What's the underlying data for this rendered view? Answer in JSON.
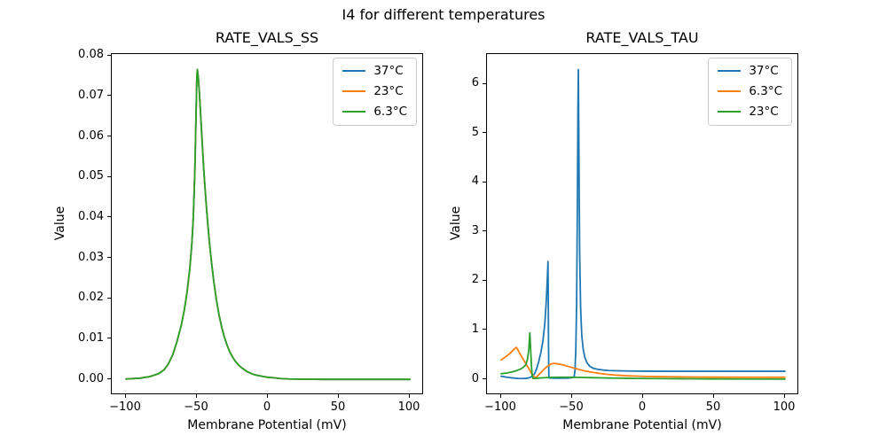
{
  "figure": {
    "suptitle": "I4 for different temperatures",
    "background": "#ffffff",
    "text_color": "#000000"
  },
  "colors": {
    "blue": "#1f77b4",
    "orange": "#ff7f0e",
    "green": "#2ca02c"
  },
  "chart_data": [
    {
      "type": "line",
      "title": "RATE_VALS_SS",
      "xlabel": "Membrane Potential (mV)",
      "ylabel": "Value",
      "xlim": [
        -110,
        110
      ],
      "ylim": [
        -0.0038,
        0.0805
      ],
      "grid": false,
      "xticks": {
        "values": [
          -100,
          -50,
          0,
          50,
          100
        ],
        "labels": [
          "−100",
          "−50",
          "0",
          "50",
          "100"
        ]
      },
      "yticks": {
        "values": [
          0,
          0.01,
          0.02,
          0.03,
          0.04,
          0.05,
          0.06,
          0.07,
          0.08
        ],
        "labels": [
          "0.00",
          "0.01",
          "0.02",
          "0.03",
          "0.04",
          "0.05",
          "0.06",
          "0.07",
          "0.08"
        ]
      },
      "legend": {
        "position": "upper right",
        "entries": [
          {
            "label": "37°C",
            "color": "#1f77b4"
          },
          {
            "label": "23°C",
            "color": "#ff7f0e"
          },
          {
            "label": "6.3°C",
            "color": "#2ca02c"
          }
        ]
      },
      "note": "All three temperature curves overlap exactly; bell curve peaks at ≈0.0767 near −50 mV.",
      "series": [
        {
          "name": "37°C",
          "color": "#1f77b4",
          "points": [
            [
              -100,
              0.0002
            ],
            [
              -90,
              0.0004
            ],
            [
              -83,
              0.0008
            ],
            [
              -77,
              0.0015
            ],
            [
              -73,
              0.0025
            ],
            [
              -70,
              0.004
            ],
            [
              -67,
              0.0062
            ],
            [
              -64,
              0.0095
            ],
            [
              -61,
              0.0135
            ],
            [
              -59,
              0.017
            ],
            [
              -57,
              0.0215
            ],
            [
              -55,
              0.0275
            ],
            [
              -53.5,
              0.034
            ],
            [
              -52.5,
              0.0405
            ],
            [
              -51.5,
              0.051
            ],
            [
              -50.7,
              0.064
            ],
            [
              -50.1,
              0.074
            ],
            [
              -49.7,
              0.0767
            ],
            [
              -49.1,
              0.075
            ],
            [
              -48.3,
              0.0712
            ],
            [
              -47.3,
              0.065
            ],
            [
              -46.3,
              0.0588
            ],
            [
              -45.2,
              0.052
            ],
            [
              -44,
              0.046
            ],
            [
              -42.6,
              0.0396
            ],
            [
              -41.2,
              0.034
            ],
            [
              -39.6,
              0.0287
            ],
            [
              -38,
              0.024
            ],
            [
              -36.2,
              0.0196
            ],
            [
              -34.4,
              0.016
            ],
            [
              -32.6,
              0.0131
            ],
            [
              -30.8,
              0.0107
            ],
            [
              -29,
              0.0088
            ],
            [
              -27,
              0.007
            ],
            [
              -25,
              0.0057
            ],
            [
              -23,
              0.0046
            ],
            [
              -21,
              0.0038
            ],
            [
              -19,
              0.0031
            ],
            [
              -17,
              0.0026
            ],
            [
              -14.5,
              0.002
            ],
            [
              -12,
              0.0016
            ],
            [
              -9,
              0.0012
            ],
            [
              -6,
              0.001
            ],
            [
              -3,
              0.0008
            ],
            [
              0,
              0.0006
            ],
            [
              4,
              0.0005
            ],
            [
              9,
              0.0003
            ],
            [
              15,
              0.0002
            ],
            [
              25,
              0.00015
            ],
            [
              40,
              0.0001
            ],
            [
              60,
              0.0001
            ],
            [
              100,
              0.0001
            ]
          ]
        },
        {
          "name": "23°C",
          "color": "#ff7f0e",
          "points_same_as": "37°C"
        },
        {
          "name": "6.3°C",
          "color": "#2ca02c",
          "points_same_as": "37°C"
        }
      ]
    },
    {
      "type": "line",
      "title": "RATE_VALS_TAU",
      "xlabel": "Membrane Potential (mV)",
      "ylabel": "Value",
      "xlim": [
        -110,
        110
      ],
      "ylim": [
        -0.315,
        6.615
      ],
      "grid": false,
      "xticks": {
        "values": [
          -100,
          -50,
          0,
          50,
          100
        ],
        "labels": [
          "−100",
          "−50",
          "0",
          "50",
          "100"
        ]
      },
      "yticks": {
        "values": [
          0,
          1,
          2,
          3,
          4,
          5,
          6
        ],
        "labels": [
          "0",
          "1",
          "2",
          "3",
          "4",
          "5",
          "6"
        ]
      },
      "legend": {
        "position": "upper right",
        "entries": [
          {
            "label": "37°C",
            "color": "#1f77b4"
          },
          {
            "label": "6.3°C",
            "color": "#ff7f0e"
          },
          {
            "label": "23°C",
            "color": "#2ca02c"
          }
        ]
      },
      "note": "37°C curve has sharp spikes ≈2.4 at −67 mV and ≈6.3 at −46 mV; 6.3°C peaks ≈0.65 at −89 mV with broad bump ≈0.33 near −63 mV; 23°C spikes ≈0.95 at −80 mV.",
      "series": [
        {
          "name": "37°C",
          "color": "#1f77b4",
          "points": [
            [
              -100,
              0.07
            ],
            [
              -96,
              0.05
            ],
            [
              -92,
              0.035
            ],
            [
              -88,
              0.025
            ],
            [
              -85,
              0.022
            ],
            [
              -82,
              0.028
            ],
            [
              -80,
              0.04
            ],
            [
              -78,
              0.07
            ],
            [
              -76.5,
              0.12
            ],
            [
              -75,
              0.22
            ],
            [
              -73.5,
              0.37
            ],
            [
              -72,
              0.55
            ],
            [
              -70.5,
              0.8
            ],
            [
              -69.2,
              1.15
            ],
            [
              -68.2,
              1.6
            ],
            [
              -67.4,
              2.1
            ],
            [
              -67,
              2.4
            ],
            [
              -66.8,
              1.6
            ],
            [
              -66.6,
              0.6
            ],
            [
              -66.4,
              0.1
            ],
            [
              -66.2,
              0.035
            ],
            [
              -63,
              0.03
            ],
            [
              -58,
              0.03
            ],
            [
              -53,
              0.032
            ],
            [
              -50,
              0.04
            ],
            [
              -48.6,
              0.06
            ],
            [
              -48,
              0.18
            ],
            [
              -47.4,
              0.6
            ],
            [
              -46.8,
              1.6
            ],
            [
              -46.3,
              3.5
            ],
            [
              -45.9,
              5.5
            ],
            [
              -45.6,
              6.3
            ],
            [
              -45.2,
              4.6
            ],
            [
              -44.7,
              2.6
            ],
            [
              -44,
              1.45
            ],
            [
              -43.2,
              0.9
            ],
            [
              -42.2,
              0.62
            ],
            [
              -41,
              0.45
            ],
            [
              -39.5,
              0.34
            ],
            [
              -37.5,
              0.27
            ],
            [
              -35,
              0.23
            ],
            [
              -32,
              0.21
            ],
            [
              -28,
              0.195
            ],
            [
              -24,
              0.185
            ],
            [
              -18,
              0.18
            ],
            [
              -10,
              0.175
            ],
            [
              0,
              0.172
            ],
            [
              15,
              0.17
            ],
            [
              35,
              0.17
            ],
            [
              60,
              0.17
            ],
            [
              100,
              0.17
            ]
          ]
        },
        {
          "name": "6.3°C",
          "color": "#ff7f0e",
          "points": [
            [
              -100,
              0.4
            ],
            [
              -97,
              0.46
            ],
            [
              -94,
              0.53
            ],
            [
              -91.5,
              0.6
            ],
            [
              -90,
              0.64
            ],
            [
              -89.3,
              0.655
            ],
            [
              -88.3,
              0.61
            ],
            [
              -87,
              0.54
            ],
            [
              -85,
              0.44
            ],
            [
              -83,
              0.34
            ],
            [
              -81,
              0.25
            ],
            [
              -79.5,
              0.17
            ],
            [
              -78,
              0.1
            ],
            [
              -77,
              0.06
            ],
            [
              -76.2,
              0.042
            ],
            [
              -75.3,
              0.05
            ],
            [
              -74,
              0.085
            ],
            [
              -72,
              0.145
            ],
            [
              -70,
              0.205
            ],
            [
              -68,
              0.26
            ],
            [
              -66,
              0.3
            ],
            [
              -64.5,
              0.32
            ],
            [
              -63,
              0.33
            ],
            [
              -61,
              0.325
            ],
            [
              -58,
              0.31
            ],
            [
              -55,
              0.287
            ],
            [
              -52,
              0.262
            ],
            [
              -49,
              0.237
            ],
            [
              -46,
              0.213
            ],
            [
              -43,
              0.19
            ],
            [
              -40,
              0.17
            ],
            [
              -36,
              0.15
            ],
            [
              -32,
              0.132
            ],
            [
              -28,
              0.117
            ],
            [
              -24,
              0.104
            ],
            [
              -20,
              0.094
            ],
            [
              -15,
              0.084
            ],
            [
              -10,
              0.077
            ],
            [
              -5,
              0.072
            ],
            [
              0,
              0.068
            ],
            [
              10,
              0.062
            ],
            [
              20,
              0.058
            ],
            [
              35,
              0.054
            ],
            [
              55,
              0.051
            ],
            [
              75,
              0.049
            ],
            [
              100,
              0.048
            ]
          ]
        },
        {
          "name": "23°C",
          "color": "#2ca02c",
          "points": [
            [
              -100,
              0.12
            ],
            [
              -96,
              0.135
            ],
            [
              -92,
              0.16
            ],
            [
              -89,
              0.185
            ],
            [
              -86,
              0.22
            ],
            [
              -84,
              0.26
            ],
            [
              -82.5,
              0.31
            ],
            [
              -81.4,
              0.42
            ],
            [
              -80.5,
              0.62
            ],
            [
              -79.8,
              0.95
            ],
            [
              -79.2,
              0.6
            ],
            [
              -78.6,
              0.25
            ],
            [
              -78.1,
              0.08
            ],
            [
              -77.5,
              0.025
            ],
            [
              -76,
              0.025
            ],
            [
              -73,
              0.033
            ],
            [
              -69,
              0.04
            ],
            [
              -64,
              0.046
            ],
            [
              -59,
              0.05
            ],
            [
              -54,
              0.05
            ],
            [
              -49,
              0.048
            ],
            [
              -44,
              0.045
            ],
            [
              -39,
              0.042
            ],
            [
              -34,
              0.039
            ],
            [
              -29,
              0.036
            ],
            [
              -24,
              0.033
            ],
            [
              -19,
              0.031
            ],
            [
              -12,
              0.028
            ],
            [
              -5,
              0.025
            ],
            [
              5,
              0.023
            ],
            [
              18,
              0.02
            ],
            [
              32,
              0.018
            ],
            [
              50,
              0.015
            ],
            [
              70,
              0.013
            ],
            [
              100,
              0.011
            ]
          ]
        }
      ]
    }
  ]
}
